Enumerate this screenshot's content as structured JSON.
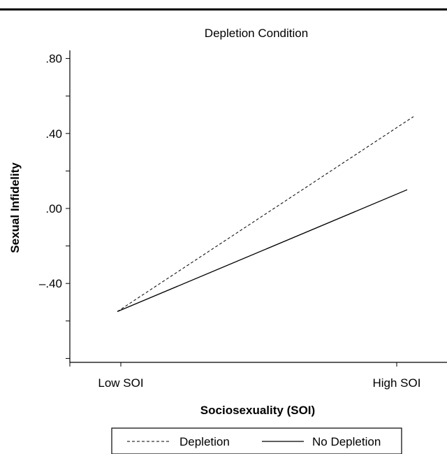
{
  "chart_data": {
    "type": "line",
    "title": "Depletion Condition",
    "xlabel": "Sociosexuality (SOI)",
    "ylabel": "Sexual Infidelity",
    "categories": [
      "Low SOI",
      "High SOI"
    ],
    "yticks": [
      ".80",
      ".40",
      ".00",
      "–.40"
    ],
    "ytick_values": [
      0.8,
      0.4,
      0.0,
      -0.4
    ],
    "ylim": [
      -0.8,
      0.85
    ],
    "series": [
      {
        "name": "Depletion",
        "style": "dashed",
        "values": [
          -0.55,
          0.49
        ]
      },
      {
        "name": "No Depletion",
        "style": "solid",
        "values": [
          -0.55,
          0.1
        ]
      }
    ],
    "legend_position": "bottom",
    "grid": false
  }
}
